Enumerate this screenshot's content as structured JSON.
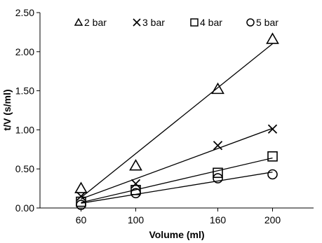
{
  "chart_data": {
    "type": "scatter",
    "title": "",
    "xlabel": "Volume (ml)",
    "ylabel": "t/V (s/ml)",
    "x_categories": [
      "60",
      "100",
      "160",
      "200"
    ],
    "x_values": [
      60,
      100,
      160,
      200
    ],
    "xlim": [
      30,
      230
    ],
    "ylim": [
      0,
      2.5
    ],
    "y_ticks": [
      "0.00",
      "0.50",
      "1.00",
      "1.50",
      "2.00",
      "2.50"
    ],
    "y_tick_values": [
      0,
      0.5,
      1.0,
      1.5,
      2.0,
      2.5
    ],
    "grid": false,
    "legend": "top",
    "trendlines": true,
    "series": [
      {
        "name": "2 bar",
        "marker": "triangle",
        "x": [
          60,
          100,
          160,
          200
        ],
        "y": [
          0.25,
          0.54,
          1.52,
          2.16
        ]
      },
      {
        "name": "3 bar",
        "marker": "cross",
        "x": [
          60,
          100,
          160,
          200
        ],
        "y": [
          0.15,
          0.31,
          0.8,
          1.01
        ]
      },
      {
        "name": "4 bar",
        "marker": "square",
        "x": [
          60,
          100,
          160,
          200
        ],
        "y": [
          0.08,
          0.23,
          0.45,
          0.66
        ]
      },
      {
        "name": "5 bar",
        "marker": "circle",
        "x": [
          60,
          100,
          160,
          200
        ],
        "y": [
          0.04,
          0.19,
          0.38,
          0.43
        ]
      }
    ]
  }
}
